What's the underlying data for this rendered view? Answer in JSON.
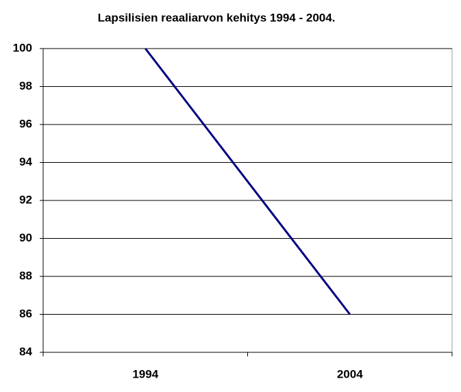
{
  "chart_data": {
    "type": "line",
    "title": "Lapsilisien reaaliarvon kehitys 1994 - 2004.",
    "categories": [
      "1994",
      "2004"
    ],
    "values": [
      100,
      86
    ],
    "color": "#000080",
    "ylim": [
      84,
      100
    ],
    "yticks": [
      84,
      86,
      88,
      90,
      92,
      94,
      96,
      98,
      100
    ],
    "grid": true
  }
}
